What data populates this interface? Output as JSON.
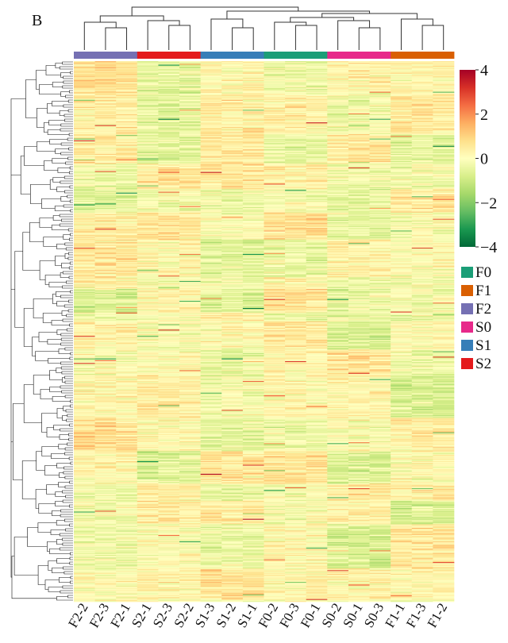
{
  "panel_label": "B",
  "chart_data": {
    "type": "heatmap",
    "title": "",
    "columns": [
      "F2-2",
      "F2-3",
      "F2-1",
      "S2-1",
      "S2-3",
      "S2-2",
      "S1-3",
      "S1-2",
      "S1-1",
      "F0-2",
      "F0-3",
      "F0-1",
      "S0-2",
      "S0-1",
      "S0-3",
      "F1-1",
      "F1-3",
      "F1-2"
    ],
    "column_groups": [
      "F2",
      "F2",
      "F2",
      "S2",
      "S2",
      "S2",
      "S1",
      "S1",
      "S1",
      "F0",
      "F0",
      "F0",
      "S0",
      "S0",
      "S0",
      "F1",
      "F1",
      "F1"
    ],
    "row_count_approx": 600,
    "value_range": [
      -4,
      4
    ],
    "colorbar": {
      "ticks": [
        4,
        2,
        0,
        -2,
        -4
      ],
      "tick_labels": [
        "4",
        "2",
        "0",
        "−2",
        "−4"
      ],
      "colors": [
        "#006837",
        "#1a9850",
        "#66bd63",
        "#a6d96a",
        "#d9ef8b",
        "#ffffbf",
        "#fee08b",
        "#fdae61",
        "#f46d43",
        "#d73027",
        "#a50026"
      ]
    },
    "legend": {
      "placement": "right",
      "entries": [
        {
          "label": "F0",
          "color": "#1b9e77"
        },
        {
          "label": "F1",
          "color": "#d95f02"
        },
        {
          "label": "F2",
          "color": "#7570b3"
        },
        {
          "label": "S0",
          "color": "#e7298a"
        },
        {
          "label": "S1",
          "color": "#377eb8"
        },
        {
          "label": "S2",
          "color": "#e41a1c"
        }
      ]
    },
    "column_dendrogram": true,
    "row_dendrogram": true,
    "grid": false
  }
}
